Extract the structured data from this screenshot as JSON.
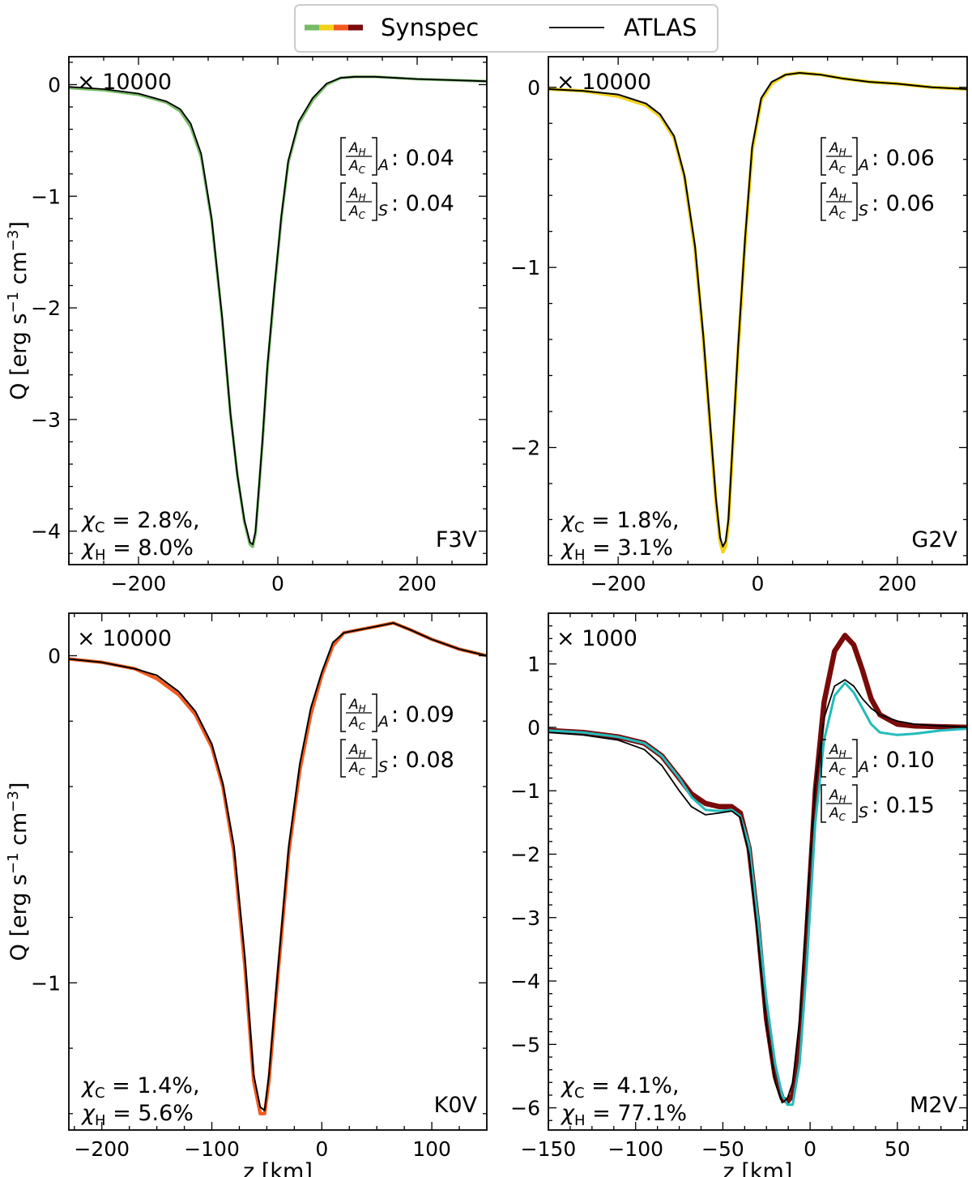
{
  "legend": {
    "synspec_label": "Synspec",
    "atlas_label": "ATLAS",
    "synspec_colors": [
      "#77bb66",
      "#f2d21a",
      "#f25a1e",
      "#7a0a0a"
    ],
    "atlas_color": "#000000"
  },
  "labels": {
    "xlabel": "z [km]",
    "ylabel_main": "Q [erg s",
    "ylabel_sup1": "−1",
    "ylabel_mid": " cm",
    "ylabel_sup2": "−3",
    "ylabel_end": "]",
    "ratio_num": "A",
    "ratio_num_sub": "H",
    "ratio_den": "A",
    "ratio_den_sub": "C",
    "ratio_sub_A": "A",
    "ratio_sub_S": "S"
  },
  "chart_data": [
    {
      "type": "line",
      "panel": "F3V",
      "star": "F3V",
      "scale_label": "× 10000",
      "xlim": [
        -300,
        300
      ],
      "ylim": [
        -4.3,
        0.25
      ],
      "xticks": [
        -200,
        0,
        200
      ],
      "yticks": [
        0,
        -1,
        -2,
        -3,
        -4
      ],
      "ratio_A": ": 0.04",
      "ratio_S": ": 0.04",
      "chi_C_sym": "χ",
      "chi_C_sub": "C",
      "chi_C_val": " = 2.8%,",
      "chi_H_sym": "χ",
      "chi_H_sub": "H",
      "chi_H_val": " = 8.0%",
      "series": [
        {
          "name": "Synspec",
          "color": "#77bb66",
          "x": [
            -300,
            -250,
            -200,
            -160,
            -140,
            -125,
            -110,
            -95,
            -80,
            -68,
            -58,
            -48,
            -40,
            -36,
            -32,
            -28,
            -22,
            -15,
            -5,
            5,
            15,
            30,
            50,
            70,
            90,
            110,
            140,
            170,
            200,
            250,
            300
          ],
          "y": [
            -0.03,
            -0.05,
            -0.09,
            -0.16,
            -0.24,
            -0.38,
            -0.65,
            -1.22,
            -2.1,
            -2.95,
            -3.5,
            -3.92,
            -4.12,
            -4.14,
            -4.02,
            -3.7,
            -3.2,
            -2.55,
            -1.85,
            -1.2,
            -0.7,
            -0.35,
            -0.14,
            0.0,
            0.06,
            0.07,
            0.07,
            0.06,
            0.05,
            0.04,
            0.03
          ]
        },
        {
          "name": "ATLAS",
          "color": "#000000",
          "x": [
            -300,
            -250,
            -200,
            -160,
            -140,
            -125,
            -110,
            -95,
            -80,
            -68,
            -58,
            -48,
            -40,
            -36,
            -32,
            -28,
            -22,
            -15,
            -5,
            5,
            15,
            30,
            50,
            70,
            90,
            110,
            140,
            170,
            200,
            250,
            300
          ],
          "y": [
            -0.02,
            -0.04,
            -0.08,
            -0.15,
            -0.22,
            -0.35,
            -0.62,
            -1.2,
            -2.08,
            -2.95,
            -3.5,
            -3.9,
            -4.1,
            -4.12,
            -4.0,
            -3.68,
            -3.18,
            -2.52,
            -1.82,
            -1.18,
            -0.68,
            -0.33,
            -0.12,
            0.01,
            0.06,
            0.07,
            0.07,
            0.06,
            0.05,
            0.04,
            0.03
          ]
        }
      ]
    },
    {
      "type": "line",
      "panel": "G2V",
      "star": "G2V",
      "scale_label": "× 10000",
      "xlim": [
        -300,
        300
      ],
      "ylim": [
        -2.65,
        0.17
      ],
      "xticks": [
        -200,
        0,
        200
      ],
      "yticks": [
        0,
        -1,
        -2
      ],
      "ratio_A": ": 0.06",
      "ratio_S": ": 0.06",
      "chi_C_sym": "χ",
      "chi_C_sub": "C",
      "chi_C_val": " = 1.8%,",
      "chi_H_sym": "χ",
      "chi_H_sub": "H",
      "chi_H_val": " = 3.1%",
      "series": [
        {
          "name": "Synspec",
          "color": "#f2d21a",
          "x": [
            -300,
            -250,
            -200,
            -160,
            -140,
            -120,
            -105,
            -90,
            -78,
            -68,
            -60,
            -54,
            -50,
            -46,
            -42,
            -36,
            -28,
            -18,
            -8,
            5,
            20,
            40,
            60,
            90,
            120,
            160,
            200,
            250,
            300
          ],
          "y": [
            -0.01,
            -0.02,
            -0.05,
            -0.1,
            -0.16,
            -0.28,
            -0.5,
            -0.9,
            -1.4,
            -1.9,
            -2.3,
            -2.52,
            -2.58,
            -2.55,
            -2.42,
            -2.0,
            -1.45,
            -0.85,
            -0.35,
            -0.07,
            0.02,
            0.07,
            0.08,
            0.07,
            0.05,
            0.03,
            0.02,
            0.0,
            -0.01
          ]
        },
        {
          "name": "ATLAS",
          "color": "#000000",
          "x": [
            -300,
            -250,
            -200,
            -160,
            -140,
            -120,
            -105,
            -90,
            -78,
            -68,
            -60,
            -54,
            -50,
            -46,
            -42,
            -36,
            -28,
            -18,
            -8,
            5,
            20,
            40,
            60,
            90,
            120,
            160,
            200,
            250,
            300
          ],
          "y": [
            -0.01,
            -0.02,
            -0.04,
            -0.09,
            -0.15,
            -0.27,
            -0.49,
            -0.88,
            -1.38,
            -1.88,
            -2.28,
            -2.5,
            -2.55,
            -2.52,
            -2.4,
            -1.98,
            -1.43,
            -0.83,
            -0.33,
            -0.06,
            0.03,
            0.07,
            0.08,
            0.07,
            0.05,
            0.03,
            0.02,
            0.0,
            -0.01
          ]
        }
      ]
    },
    {
      "type": "line",
      "panel": "K0V",
      "star": "K0V",
      "scale_label": "× 10000",
      "xlim": [
        -230,
        150
      ],
      "ylim": [
        -1.45,
        0.13
      ],
      "xticks": [
        -200,
        -100,
        0,
        100
      ],
      "yticks": [
        0,
        -1
      ],
      "ratio_A": ": 0.09",
      "ratio_S": ": 0.08",
      "chi_C_sym": "χ",
      "chi_C_sub": "C",
      "chi_C_val": " = 1.4%,",
      "chi_H_sym": "χ",
      "chi_H_sub": "H",
      "chi_H_val": " = 5.6%",
      "series": [
        {
          "name": "Synspec",
          "color": "#f25a1e",
          "x": [
            -230,
            -200,
            -170,
            -150,
            -130,
            -115,
            -100,
            -90,
            -80,
            -70,
            -62,
            -56,
            -52,
            -48,
            -40,
            -30,
            -20,
            -10,
            0,
            10,
            20,
            35,
            50,
            65,
            80,
            100,
            125,
            150
          ],
          "y": [
            -0.01,
            -0.02,
            -0.04,
            -0.07,
            -0.12,
            -0.18,
            -0.28,
            -0.4,
            -0.6,
            -0.95,
            -1.3,
            -1.4,
            -1.4,
            -1.3,
            -0.98,
            -0.6,
            -0.35,
            -0.18,
            -0.06,
            0.03,
            0.07,
            0.08,
            0.09,
            0.1,
            0.08,
            0.05,
            0.02,
            0.0
          ]
        },
        {
          "name": "ATLAS",
          "color": "#000000",
          "x": [
            -230,
            -200,
            -170,
            -150,
            -130,
            -115,
            -100,
            -90,
            -80,
            -70,
            -62,
            -56,
            -52,
            -48,
            -40,
            -30,
            -20,
            -10,
            0,
            10,
            20,
            35,
            50,
            65,
            80,
            100,
            125,
            150
          ],
          "y": [
            -0.01,
            -0.02,
            -0.04,
            -0.06,
            -0.11,
            -0.17,
            -0.27,
            -0.39,
            -0.58,
            -0.92,
            -1.28,
            -1.38,
            -1.39,
            -1.28,
            -0.96,
            -0.58,
            -0.33,
            -0.16,
            -0.05,
            0.04,
            0.07,
            0.08,
            0.09,
            0.1,
            0.08,
            0.05,
            0.02,
            0.0
          ]
        }
      ]
    },
    {
      "type": "line",
      "panel": "M2V",
      "star": "M2V",
      "scale_label": "× 1000",
      "xlim": [
        -150,
        90
      ],
      "ylim": [
        -6.35,
        1.8
      ],
      "xticks": [
        -150,
        -100,
        -50,
        0,
        50
      ],
      "yticks": [
        1,
        0,
        -1,
        -2,
        -3,
        -4,
        -5,
        -6
      ],
      "ratio_A": ": 0.10",
      "ratio_S": ": 0.15",
      "chi_C_sym": "χ",
      "chi_C_sub": "C",
      "chi_C_val": " = 4.1%,",
      "chi_H_sym": "χ",
      "chi_H_sub": "H",
      "chi_H_val": " = 77.1%",
      "series": [
        {
          "name": "Synspec",
          "color": "#7a0a0a",
          "x": [
            -150,
            -130,
            -110,
            -95,
            -85,
            -75,
            -68,
            -60,
            -52,
            -45,
            -40,
            -35,
            -30,
            -25,
            -20,
            -16,
            -13,
            -10,
            -6,
            -2,
            3,
            8,
            14,
            20,
            25,
            30,
            35,
            40,
            50,
            60,
            75,
            90
          ],
          "y": [
            -0.05,
            -0.08,
            -0.15,
            -0.25,
            -0.45,
            -0.8,
            -1.05,
            -1.2,
            -1.25,
            -1.25,
            -1.35,
            -1.9,
            -3.1,
            -4.6,
            -5.5,
            -5.85,
            -5.9,
            -5.8,
            -5.0,
            -3.3,
            -1.0,
            0.4,
            1.2,
            1.45,
            1.3,
            0.9,
            0.45,
            0.2,
            0.05,
            0.02,
            0.01,
            0.0
          ]
        },
        {
          "name": "ATLAS",
          "color": "#000000",
          "x": [
            -150,
            -130,
            -110,
            -95,
            -85,
            -75,
            -68,
            -60,
            -52,
            -45,
            -40,
            -35,
            -30,
            -25,
            -20,
            -16,
            -13,
            -10,
            -6,
            -2,
            3,
            8,
            14,
            20,
            25,
            30,
            35,
            40,
            50,
            60,
            75,
            90
          ],
          "y": [
            -0.08,
            -0.12,
            -0.2,
            -0.35,
            -0.6,
            -1.0,
            -1.25,
            -1.38,
            -1.35,
            -1.32,
            -1.42,
            -2.0,
            -3.3,
            -4.7,
            -5.6,
            -5.92,
            -5.85,
            -5.6,
            -4.6,
            -2.9,
            -0.9,
            0.15,
            0.65,
            0.75,
            0.65,
            0.45,
            0.3,
            0.2,
            0.1,
            0.05,
            0.02,
            0.0
          ]
        },
        {
          "name": "",
          "color": "#22bbbb",
          "x": [
            -150,
            -130,
            -110,
            -95,
            -85,
            -75,
            -68,
            -60,
            -52,
            -45,
            -40,
            -35,
            -30,
            -25,
            -20,
            -16,
            -13,
            -10,
            -6,
            -2,
            3,
            8,
            14,
            20,
            25,
            30,
            35,
            40,
            50,
            60,
            75,
            90
          ],
          "y": [
            -0.05,
            -0.08,
            -0.15,
            -0.25,
            -0.45,
            -0.8,
            -1.1,
            -1.3,
            -1.32,
            -1.3,
            -1.4,
            -1.85,
            -3.0,
            -4.3,
            -5.3,
            -5.8,
            -5.95,
            -5.95,
            -5.3,
            -3.8,
            -1.5,
            -0.2,
            0.5,
            0.7,
            0.55,
            0.3,
            0.05,
            -0.08,
            -0.12,
            -0.1,
            -0.05,
            -0.02
          ]
        }
      ]
    }
  ]
}
